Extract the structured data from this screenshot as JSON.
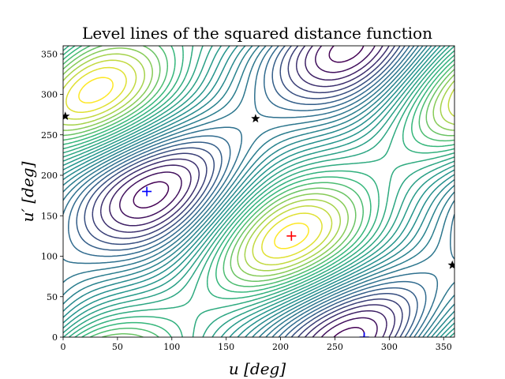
{
  "chart_data": {
    "type": "contour",
    "title": "Level lines of the squared distance function",
    "xlabel": "u [deg]",
    "ylabel": "u′ [deg]",
    "xlim": [
      0,
      360
    ],
    "ylim": [
      0,
      360
    ],
    "xticks": [
      0,
      50,
      100,
      150,
      200,
      250,
      300,
      350
    ],
    "yticks": [
      0,
      50,
      100,
      150,
      200,
      250,
      300,
      350
    ],
    "grid": false,
    "colormap": [
      "#440154",
      "#31688e",
      "#21918c",
      "#35b779",
      "#fde725"
    ],
    "maxima": [
      {
        "marker": "+",
        "color": "#ff0000",
        "u": 210,
        "u_prime": 125
      }
    ],
    "minima": [
      {
        "marker": "+",
        "color": "#0000ff",
        "u": 77,
        "u_prime": 180
      },
      {
        "marker": "+",
        "color": "#0000ff",
        "u": 277,
        "u_prime": 0
      }
    ],
    "saddles": [
      {
        "marker": "*",
        "color": "#000000",
        "u": 2,
        "u_prime": 273
      },
      {
        "marker": "*",
        "color": "#000000",
        "u": 177,
        "u_prime": 270
      },
      {
        "marker": "*",
        "color": "#000000",
        "u": 358,
        "u_prime": 89
      }
    ]
  }
}
